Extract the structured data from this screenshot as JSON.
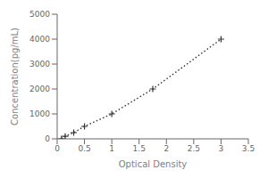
{
  "chart_data": {
    "type": "line",
    "x": [
      0.078,
      0.147,
      0.303,
      0.5,
      1.0,
      1.75,
      3.0
    ],
    "values": [
      0,
      100,
      250,
      500,
      1000,
      2000,
      4000
    ],
    "xlabel": "Optical Density",
    "ylabel": "Concentration(pg/mL)",
    "xlim": [
      0,
      3.5
    ],
    "ylim": [
      0,
      5000
    ],
    "xticks": [
      0,
      0.5,
      1,
      1.5,
      2,
      2.5,
      3,
      3.5
    ],
    "yticks": [
      0,
      1000,
      2000,
      3000,
      4000,
      5000
    ],
    "color": "#333333",
    "marker": "plus",
    "line_style": "dotted"
  }
}
